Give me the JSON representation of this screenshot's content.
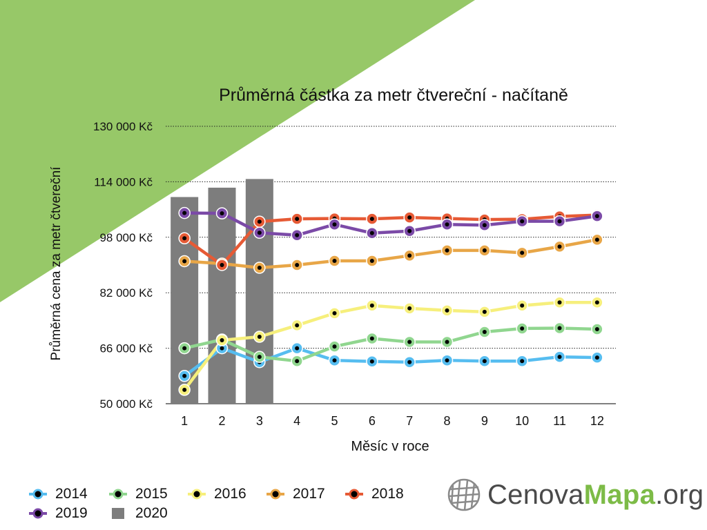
{
  "colors": {
    "background_accent": "#97c868",
    "grid": "#222222",
    "bar": "#7d7d7d",
    "series": {
      "2014": "#56bdf0",
      "2015": "#90d68f",
      "2016": "#f6ef7c",
      "2017": "#e8a647",
      "2018": "#e65a35",
      "2019": "#7b4aa7"
    }
  },
  "chart_data": {
    "type": "line",
    "title": "Průměrná částka za metr čtvereční - načítaně",
    "xlabel": "Měsíc v roce",
    "ylabel": "Průměrná cena za metr čtvereční",
    "x": [
      1,
      2,
      3,
      4,
      5,
      6,
      7,
      8,
      9,
      10,
      11,
      12
    ],
    "x_tick_labels": [
      "1",
      "2",
      "3",
      "4",
      "5",
      "6",
      "7",
      "8",
      "9",
      "10",
      "11",
      "12"
    ],
    "ylim": [
      50000,
      130000
    ],
    "y_ticks": [
      50000,
      66000,
      82000,
      98000,
      114000,
      130000
    ],
    "y_tick_labels": [
      "50 000 Kč",
      "66 000 Kč",
      "82 000 Kč",
      "98 000 Kč",
      "114 000 Kč",
      "130 000 Kč"
    ],
    "grid": "horizontal dotted",
    "series": [
      {
        "name": "2014",
        "type": "line",
        "values": [
          58000,
          66000,
          62000,
          66000,
          62500,
          62200,
          62000,
          62500,
          62300,
          62300,
          63500,
          63300
        ]
      },
      {
        "name": "2015",
        "type": "line",
        "values": [
          66000,
          68500,
          63500,
          62300,
          66500,
          68800,
          67800,
          67800,
          70700,
          71700,
          71800,
          71500
        ]
      },
      {
        "name": "2016",
        "type": "line",
        "values": [
          54000,
          68300,
          69300,
          72600,
          76100,
          78300,
          77500,
          76900,
          76500,
          78300,
          79200,
          79200
        ]
      },
      {
        "name": "2017",
        "type": "line",
        "values": [
          91100,
          90400,
          89200,
          90000,
          91200,
          91200,
          92700,
          94200,
          94200,
          93500,
          95300,
          97300
        ]
      },
      {
        "name": "2018",
        "type": "line",
        "values": [
          97700,
          90000,
          102500,
          103300,
          103400,
          103300,
          103700,
          103400,
          103100,
          103200,
          104000,
          104400
        ]
      },
      {
        "name": "2019",
        "type": "line",
        "values": [
          105000,
          104900,
          99300,
          98600,
          101700,
          99200,
          99800,
          101700,
          101500,
          102600,
          102600,
          104100
        ]
      },
      {
        "name": "2020",
        "type": "bar",
        "values": [
          109600,
          112300,
          114800,
          null,
          null,
          null,
          null,
          null,
          null,
          null,
          null,
          null
        ]
      }
    ],
    "legend_position": "bottom-left"
  },
  "legend": [
    {
      "label": "2014",
      "kind": "line"
    },
    {
      "label": "2015",
      "kind": "line"
    },
    {
      "label": "2016",
      "kind": "line"
    },
    {
      "label": "2017",
      "kind": "line"
    },
    {
      "label": "2018",
      "kind": "line"
    },
    {
      "label": "2019",
      "kind": "line"
    },
    {
      "label": "2020",
      "kind": "bar"
    }
  ],
  "logo": {
    "part1": "Cenova",
    "part2": "Mapa",
    "part3": ".org",
    "icon": "globe-grid-icon"
  }
}
